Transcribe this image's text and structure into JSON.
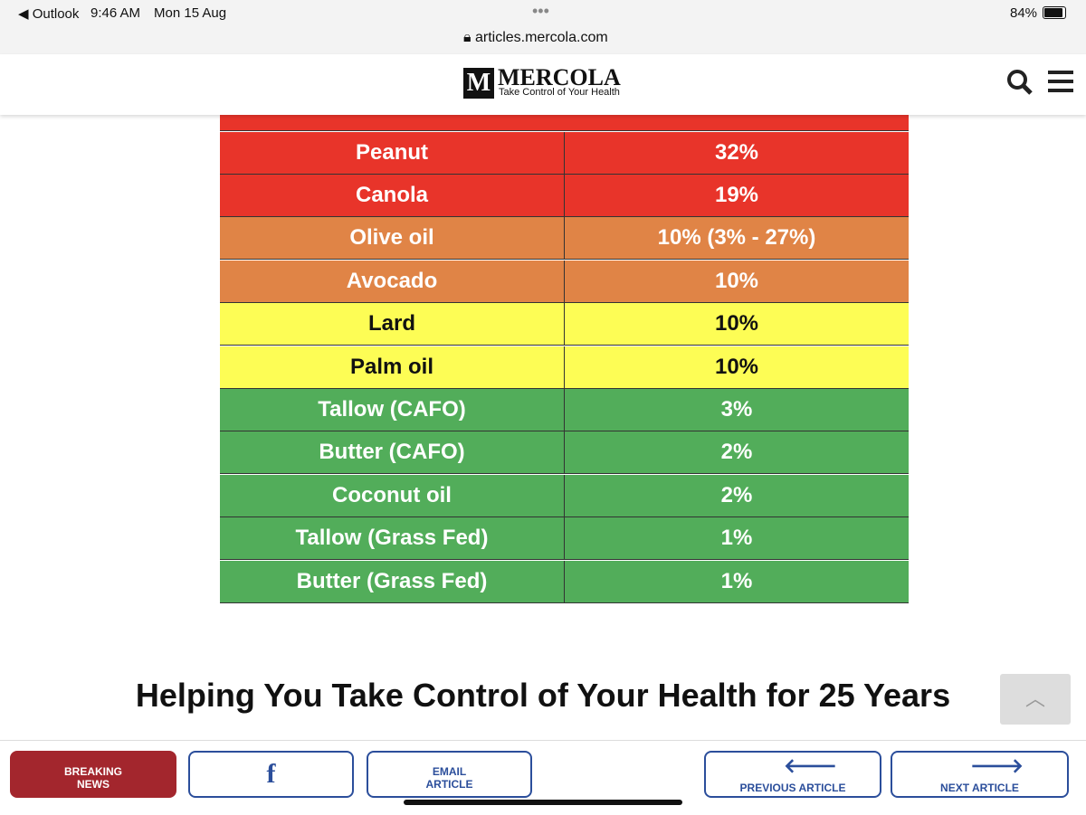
{
  "status_bar": {
    "back_app": "Outlook",
    "time": "9:46 AM",
    "date": "Mon 15 Aug",
    "battery": "84%"
  },
  "address_bar": {
    "url": "articles.mercola.com"
  },
  "header": {
    "logo": "MERCOLA",
    "tagline": "Take Control of Your Health"
  },
  "table": {
    "rows": [
      {
        "name": "Peanut",
        "value": "32%",
        "color": "#e8342a",
        "text_color": "#ffffff"
      },
      {
        "name": "Canola",
        "value": "19%",
        "color": "#e8342a",
        "text_color": "#ffffff"
      },
      {
        "name": "Olive oil",
        "value": "10% (3% - 27%)",
        "color": "#e08446",
        "text_color": "#ffffff"
      },
      {
        "name": "Avocado",
        "value": "10%",
        "color": "#e08446",
        "text_color": "#ffffff"
      },
      {
        "name": "Lard",
        "value": "10%",
        "color": "#fdfd55",
        "text_color": "#111111"
      },
      {
        "name": "Palm oil",
        "value": "10%",
        "color": "#fdfd55",
        "text_color": "#111111"
      },
      {
        "name": "Tallow (CAFO)",
        "value": "3%",
        "color": "#52ad5a",
        "text_color": "#ffffff"
      },
      {
        "name": "Butter (CAFO)",
        "value": "2%",
        "color": "#52ad5a",
        "text_color": "#ffffff"
      },
      {
        "name": "Coconut oil",
        "value": "2%",
        "color": "#52ad5a",
        "text_color": "#ffffff"
      },
      {
        "name": "Tallow (Grass Fed)",
        "value": "1%",
        "color": "#52ad5a",
        "text_color": "#ffffff"
      },
      {
        "name": "Butter (Grass Fed)",
        "value": "1%",
        "color": "#52ad5a",
        "text_color": "#ffffff"
      }
    ]
  },
  "heading": "Helping You Take Control of Your Health for 25 Years",
  "buttons": {
    "breaking": "BREAKING NEWS",
    "email": "EMAIL ARTICLE",
    "previous": "PREVIOUS ARTICLE",
    "next": "NEXT ARTICLE"
  }
}
